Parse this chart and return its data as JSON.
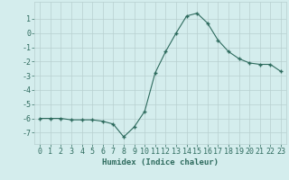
{
  "x": [
    0,
    1,
    2,
    3,
    4,
    5,
    6,
    7,
    8,
    9,
    10,
    11,
    12,
    13,
    14,
    15,
    16,
    17,
    18,
    19,
    20,
    21,
    22,
    23
  ],
  "y": [
    -6.0,
    -6.0,
    -6.0,
    -6.1,
    -6.1,
    -6.1,
    -6.2,
    -6.4,
    -7.3,
    -6.6,
    -5.5,
    -2.8,
    -1.3,
    0.0,
    1.2,
    1.4,
    0.7,
    -0.5,
    -1.3,
    -1.8,
    -2.1,
    -2.2,
    -2.2,
    -2.7
  ],
  "xlabel": "Humidex (Indice chaleur)",
  "ylim": [
    -7.8,
    2.2
  ],
  "xlim": [
    -0.5,
    23.5
  ],
  "yticks": [
    1,
    0,
    -1,
    -2,
    -3,
    -4,
    -5,
    -6,
    -7
  ],
  "xtick_labels": [
    "0",
    "1",
    "2",
    "3",
    "4",
    "5",
    "6",
    "7",
    "8",
    "9",
    "10",
    "11",
    "12",
    "13",
    "14",
    "15",
    "16",
    "17",
    "18",
    "19",
    "20",
    "21",
    "22",
    "23"
  ],
  "line_color": "#2e6b5e",
  "marker": "+",
  "bg_color": "#d4eded",
  "grid_color": "#b8d0d0",
  "font_color": "#2e6b5e",
  "xlabel_fontsize": 6.5,
  "tick_fontsize": 6.0,
  "linewidth": 0.8,
  "markersize": 3.5,
  "markeredgewidth": 1.0
}
